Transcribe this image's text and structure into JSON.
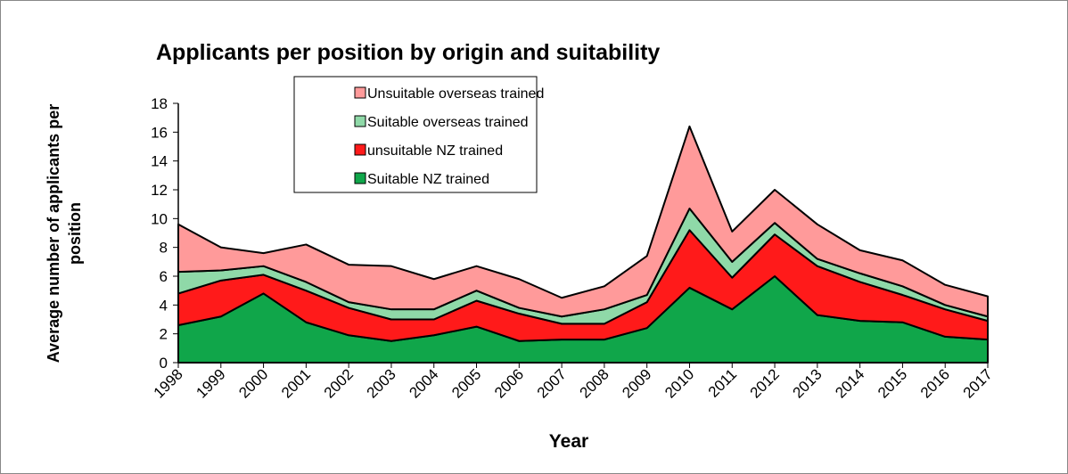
{
  "chart_data": {
    "type": "stacked_area",
    "title": "Applicants per position by origin and suitability",
    "x_label": "Year",
    "y_label": "Average number of applicants per position",
    "categories": [
      "1998",
      "1999",
      "2000",
      "2001",
      "2002",
      "2003",
      "2004",
      "2005",
      "2006",
      "2007",
      "2008",
      "2009",
      "2010",
      "2011",
      "2012",
      "2013",
      "2014",
      "2015",
      "2016",
      "2017"
    ],
    "series": [
      {
        "name": "Suitable NZ trained",
        "color": "#10a64a",
        "values": [
          2.6,
          3.2,
          4.8,
          2.8,
          1.9,
          1.5,
          1.9,
          2.5,
          1.5,
          1.6,
          1.6,
          2.4,
          5.2,
          3.7,
          6.0,
          3.3,
          2.9,
          2.8,
          1.8,
          1.6
        ]
      },
      {
        "name": "unsuitable NZ trained",
        "color": "#ff1a1a",
        "values": [
          2.2,
          2.5,
          1.3,
          2.2,
          1.9,
          1.5,
          1.1,
          1.8,
          1.9,
          1.1,
          1.1,
          1.8,
          4.0,
          2.2,
          2.9,
          3.4,
          2.7,
          1.9,
          1.9,
          1.3
        ]
      },
      {
        "name": "Suitable overseas trained",
        "color": "#8fd9a8",
        "values": [
          1.5,
          0.7,
          0.6,
          0.6,
          0.4,
          0.7,
          0.7,
          0.7,
          0.4,
          0.5,
          1.0,
          0.5,
          1.5,
          1.1,
          0.8,
          0.5,
          0.6,
          0.6,
          0.3,
          0.3
        ]
      },
      {
        "name": "Unsuitable overseas trained",
        "color": "#ff9a9a",
        "values": [
          3.3,
          1.6,
          0.9,
          2.6,
          2.6,
          3.0,
          2.1,
          1.7,
          2.0,
          1.3,
          1.6,
          2.7,
          5.7,
          2.1,
          2.3,
          2.4,
          1.6,
          1.8,
          1.4,
          1.4
        ]
      }
    ],
    "ylim": [
      0,
      18
    ],
    "yticks": [
      0,
      2,
      4,
      6,
      8,
      10,
      12,
      14,
      16,
      18
    ],
    "grid": false
  }
}
